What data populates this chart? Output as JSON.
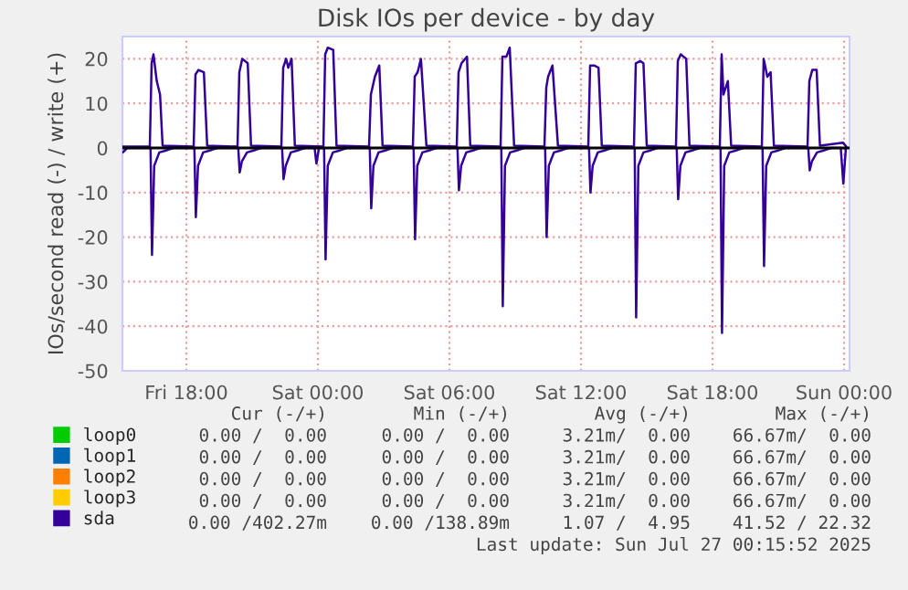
{
  "chart_data": {
    "type": "line",
    "title": "Disk IOs per device - by day",
    "ylabel": "IOs/second read (-) / write (+)",
    "xlim": [
      "2025-07-25T15:05",
      "2025-07-27T00:15"
    ],
    "xticks": [
      {
        "value": "2025-07-25T18:00",
        "label": "Fri 18:00"
      },
      {
        "value": "2025-07-26T00:00",
        "label": "Sat 00:00"
      },
      {
        "value": "2025-07-26T06:00",
        "label": "Sat 06:00"
      },
      {
        "value": "2025-07-26T12:00",
        "label": "Sat 12:00"
      },
      {
        "value": "2025-07-26T18:00",
        "label": "Sat 18:00"
      },
      {
        "value": "2025-07-27T00:00",
        "label": "Sun 00:00"
      }
    ],
    "ylim": [
      -50,
      25
    ],
    "yticks": [
      -50,
      -40,
      -30,
      -20,
      -10,
      0,
      10,
      20
    ],
    "grid": true,
    "legend": "bottom left",
    "marker": "none",
    "line_style": "solid",
    "ref_lines": [
      {
        "axis": "y",
        "value": 0,
        "color": "#000000"
      }
    ],
    "series": [
      {
        "name": "loop0",
        "color": "#00cc00"
      },
      {
        "name": "loop1",
        "color": "#0066b3"
      },
      {
        "name": "loop2",
        "color": "#ff8000"
      },
      {
        "name": "loop3",
        "color": "#ffcc00"
      },
      {
        "name": "sda",
        "color": "#330099",
        "x": [
          "2025-07-25T15:06",
          "2025-07-25T16:20",
          "2025-07-25T16:25",
          "2025-07-25T16:30",
          "2025-07-25T16:39",
          "2025-07-25T16:48",
          "2025-07-25T16:55",
          "2025-07-25T18:20",
          "2025-07-25T18:25",
          "2025-07-25T18:33",
          "2025-07-25T18:48",
          "2025-07-25T18:57",
          "2025-07-25T20:20",
          "2025-07-25T20:25",
          "2025-07-25T20:33",
          "2025-07-25T20:48",
          "2025-07-25T20:57",
          "2025-07-25T22:20",
          "2025-07-25T22:25",
          "2025-07-25T22:33",
          "2025-07-25T22:39",
          "2025-07-25T22:48",
          "2025-07-25T22:57",
          "2025-07-26T00:15",
          "2025-07-26T00:20",
          "2025-07-26T00:27",
          "2025-07-26T00:42",
          "2025-07-26T00:51",
          "2025-07-26T02:20",
          "2025-07-26T02:25",
          "2025-07-26T02:36",
          "2025-07-26T02:48",
          "2025-07-26T02:57",
          "2025-07-26T04:20",
          "2025-07-26T04:25",
          "2025-07-26T04:33",
          "2025-07-26T04:42",
          "2025-07-26T04:57",
          "2025-07-26T06:20",
          "2025-07-26T06:25",
          "2025-07-26T06:33",
          "2025-07-26T06:48",
          "2025-07-26T06:57",
          "2025-07-26T08:20",
          "2025-07-26T08:25",
          "2025-07-26T08:36",
          "2025-07-26T08:45",
          "2025-07-26T08:57",
          "2025-07-26T10:20",
          "2025-07-26T10:25",
          "2025-07-26T10:30",
          "2025-07-26T10:42",
          "2025-07-26T10:57",
          "2025-07-26T12:20",
          "2025-07-26T12:25",
          "2025-07-26T12:36",
          "2025-07-26T12:48",
          "2025-07-26T12:57",
          "2025-07-26T14:25",
          "2025-07-26T14:30",
          "2025-07-26T14:42",
          "2025-07-26T14:51",
          "2025-07-26T15:00",
          "2025-07-26T16:20",
          "2025-07-26T16:25",
          "2025-07-26T16:33",
          "2025-07-26T16:48",
          "2025-07-26T16:57",
          "2025-07-26T18:20",
          "2025-07-26T18:25",
          "2025-07-26T18:30",
          "2025-07-26T18:42",
          "2025-07-26T18:51",
          "2025-07-26T20:15",
          "2025-07-26T20:20",
          "2025-07-26T20:30",
          "2025-07-26T20:39",
          "2025-07-26T20:48",
          "2025-07-26T22:20",
          "2025-07-26T22:25",
          "2025-07-26T22:33",
          "2025-07-26T22:45",
          "2025-07-26T22:54",
          "2025-07-26T23:57",
          "2025-07-27T00:06"
        ],
        "values": [
          0.3,
          0.3,
          19,
          21,
          15,
          12,
          0.5,
          0.3,
          16.5,
          17.5,
          17,
          0.5,
          0.3,
          17,
          20,
          19,
          0.5,
          0.3,
          18,
          20,
          18,
          20,
          0.5,
          0.3,
          21,
          22.5,
          22,
          0.5,
          0.3,
          12,
          16,
          18.5,
          0.5,
          0.3,
          16,
          17,
          20,
          0.5,
          0.3,
          17,
          19,
          20.5,
          0.5,
          0.3,
          20.5,
          20.5,
          22.5,
          0.5,
          0.3,
          13.5,
          16,
          18.5,
          0.5,
          0.3,
          18.5,
          18.5,
          18,
          0.5,
          0.3,
          19,
          19.5,
          19,
          0.5,
          0.3,
          19.5,
          21,
          20,
          0.5,
          0.3,
          21,
          12,
          15,
          0.5,
          0.3,
          20,
          16,
          17,
          0.5,
          0.3,
          15,
          17.5,
          17.5,
          0.5,
          1.2,
          0.3
        ]
      },
      {
        "color": "#330099",
        "x": [
          "2025-07-25T15:06",
          "2025-07-25T15:18",
          "2025-07-25T16:22",
          "2025-07-25T16:26",
          "2025-07-25T16:32",
          "2025-07-25T16:46",
          "2025-07-25T17:07",
          "2025-07-25T17:25",
          "2025-07-25T18:22",
          "2025-07-25T18:26",
          "2025-07-25T18:32",
          "2025-07-25T18:46",
          "2025-07-25T19:07",
          "2025-07-25T19:25",
          "2025-07-25T20:22",
          "2025-07-25T20:26",
          "2025-07-25T20:32",
          "2025-07-25T20:46",
          "2025-07-25T21:07",
          "2025-07-25T21:25",
          "2025-07-25T22:22",
          "2025-07-25T22:26",
          "2025-07-25T22:32",
          "2025-07-25T22:46",
          "2025-07-25T23:07",
          "2025-07-25T23:25",
          "2025-07-25T23:51",
          "2025-07-25T23:56",
          "2025-07-26T00:03",
          "2025-07-26T00:17",
          "2025-07-26T00:21",
          "2025-07-26T00:27",
          "2025-07-26T00:41",
          "2025-07-26T01:02",
          "2025-07-26T01:20",
          "2025-07-26T02:22",
          "2025-07-26T02:26",
          "2025-07-26T02:32",
          "2025-07-26T02:46",
          "2025-07-26T03:07",
          "2025-07-26T03:25",
          "2025-07-26T04:22",
          "2025-07-26T04:26",
          "2025-07-26T04:32",
          "2025-07-26T04:46",
          "2025-07-26T05:07",
          "2025-07-26T05:25",
          "2025-07-26T06:22",
          "2025-07-26T06:26",
          "2025-07-26T06:32",
          "2025-07-26T06:46",
          "2025-07-26T07:07",
          "2025-07-26T07:25",
          "2025-07-26T08:22",
          "2025-07-26T08:26",
          "2025-07-26T08:32",
          "2025-07-26T08:46",
          "2025-07-26T09:07",
          "2025-07-26T09:25",
          "2025-07-26T10:22",
          "2025-07-26T10:26",
          "2025-07-26T10:32",
          "2025-07-26T10:46",
          "2025-07-26T11:07",
          "2025-07-26T11:25",
          "2025-07-26T12:22",
          "2025-07-26T12:26",
          "2025-07-26T12:32",
          "2025-07-26T12:46",
          "2025-07-26T13:07",
          "2025-07-26T13:25",
          "2025-07-26T14:27",
          "2025-07-26T14:31",
          "2025-07-26T14:37",
          "2025-07-26T14:51",
          "2025-07-26T15:12",
          "2025-07-26T15:30",
          "2025-07-26T16:22",
          "2025-07-26T16:26",
          "2025-07-26T16:32",
          "2025-07-26T16:46",
          "2025-07-26T17:07",
          "2025-07-26T17:25",
          "2025-07-26T18:22",
          "2025-07-26T18:26",
          "2025-07-26T18:32",
          "2025-07-26T18:46",
          "2025-07-26T19:07",
          "2025-07-26T19:25",
          "2025-07-26T20:17",
          "2025-07-26T20:21",
          "2025-07-26T20:27",
          "2025-07-26T20:41",
          "2025-07-26T21:02",
          "2025-07-26T21:20",
          "2025-07-26T22:22",
          "2025-07-26T22:26",
          "2025-07-26T22:32",
          "2025-07-26T22:46",
          "2025-07-26T23:07",
          "2025-07-26T23:25",
          "2025-07-26T23:51",
          "2025-07-26T23:58",
          "2025-07-27T00:05"
        ],
        "values": [
          -1,
          0,
          0,
          -24,
          -4,
          -1,
          -0.5,
          0,
          0,
          -15.5,
          -4,
          -1,
          -0.5,
          0,
          0,
          -5.5,
          -3,
          -1,
          -0.5,
          0,
          0,
          -7,
          -4,
          -1,
          -0.5,
          0,
          0,
          -3.5,
          0,
          0,
          -25,
          -4,
          -1,
          -0.5,
          0,
          0,
          -13.5,
          -4,
          -1,
          -0.5,
          0,
          0,
          -20.5,
          -4,
          -1,
          -0.5,
          0,
          0,
          -9.5,
          -4,
          -1,
          -0.5,
          0,
          0,
          -35.5,
          -4,
          -1,
          -0.5,
          0,
          0,
          -20,
          -4,
          -1,
          -0.5,
          0,
          0,
          -10,
          -4,
          -1,
          -0.5,
          0,
          0,
          -38,
          -4,
          -1,
          -0.5,
          0,
          0,
          -11.5,
          -4,
          -1,
          -0.5,
          0,
          0,
          -41.5,
          -4,
          -1,
          -0.5,
          0,
          0,
          -26.5,
          -4,
          -1,
          -0.5,
          0,
          0,
          -5,
          -3,
          -1,
          -0.5,
          0,
          0,
          -8,
          0
        ]
      }
    ],
    "annotations": [
      "Cur (-/+)",
      "Min (-/+)",
      "Avg (-/+)",
      "Max (-/+)",
      "0.00 /  0.00",
      "0.00 /  0.00",
      "3.21m/  0.00",
      "66.67m/  0.00",
      "0.00 /  0.00",
      "0.00 /  0.00",
      "3.21m/  0.00",
      "66.67m/  0.00",
      "0.00 /  0.00",
      "0.00 /  0.00",
      "3.21m/  0.00",
      "66.67m/  0.00",
      "0.00 /  0.00",
      "0.00 /  0.00",
      "3.21m/  0.00",
      "66.67m/  0.00",
      "0.00 /402.27m",
      "0.00 /138.89m",
      "1.07 /  4.95",
      "41.52 / 22.32",
      "Last update: Sun Jul 27 00:15:52 2025"
    ]
  }
}
